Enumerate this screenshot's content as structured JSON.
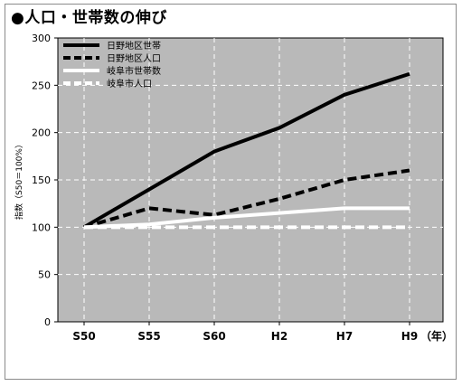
{
  "title": "●人口・世帯数の伸び",
  "chart_data": {
    "type": "line",
    "title": "●人口・世帯数の伸び",
    "ylabel": "指数（S50＝100%）",
    "xlabel": "",
    "x_unit": "（年）",
    "categories": [
      "S50",
      "S55",
      "S60",
      "H2",
      "H7",
      "H9"
    ],
    "ylim": [
      0,
      300
    ],
    "yticks": [
      "0",
      "50",
      "100",
      "150",
      "200",
      "250",
      "300"
    ],
    "grid": true,
    "legend_placement": "top-left",
    "series": [
      {
        "name": "日野地区世帯",
        "style": "solid",
        "color": "#000000",
        "values": [
          100,
          140,
          180,
          205,
          240,
          262
        ]
      },
      {
        "name": "日野地区人口",
        "style": "dashed",
        "color": "#000000",
        "values": [
          100,
          120,
          113,
          130,
          150,
          160
        ]
      },
      {
        "name": "岐阜市世帯数",
        "style": "solid",
        "color": "#ffffff",
        "values": [
          100,
          103,
          110,
          115,
          120,
          120
        ]
      },
      {
        "name": "岐阜市人口",
        "style": "dashed",
        "color": "#ffffff",
        "values": [
          100,
          100,
          100,
          100,
          100,
          100
        ]
      }
    ],
    "plot_background": "#b9b9b9"
  }
}
